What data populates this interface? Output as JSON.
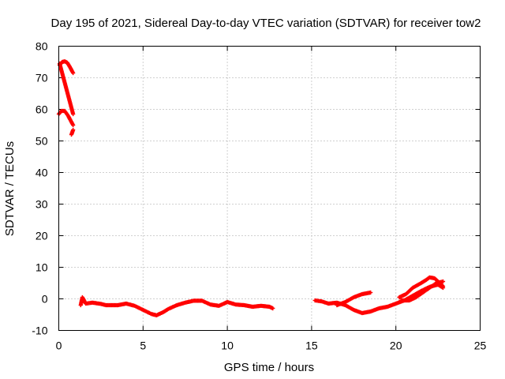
{
  "chart_data": {
    "type": "scatter",
    "title": "Day 195 of 2021, Sidereal Day-to-day VTEC variation (SDTVAR) for receiver tow2",
    "xlabel": "GPS time / hours",
    "ylabel": "SDTVAR / TECUs",
    "xlim": [
      0,
      25
    ],
    "ylim": [
      -10,
      80
    ],
    "xticks": [
      "0",
      "5",
      "10",
      "15",
      "20",
      "25"
    ],
    "yticks": [
      "-10",
      "0",
      "10",
      "20",
      "30",
      "40",
      "50",
      "60",
      "70",
      "80"
    ],
    "grid": true,
    "marker": "plus",
    "color": "#ff0000",
    "series": [
      {
        "name": "SDTVAR",
        "segments": [
          [
            [
              0.05,
              74.0
            ],
            [
              0.2,
              75.0
            ],
            [
              0.35,
              75.2
            ],
            [
              0.5,
              74.8
            ],
            [
              0.65,
              73.5
            ],
            [
              0.85,
              71.5
            ]
          ],
          [
            [
              0.05,
              74.5
            ],
            [
              0.15,
              72.5
            ],
            [
              0.3,
              69.5
            ],
            [
              0.45,
              66.5
            ],
            [
              0.6,
              63.5
            ],
            [
              0.75,
              60.5
            ],
            [
              0.85,
              58.5
            ]
          ],
          [
            [
              0.0,
              58.5
            ],
            [
              0.15,
              59.5
            ],
            [
              0.35,
              59.5
            ],
            [
              0.55,
              58.0
            ],
            [
              0.7,
              56.5
            ],
            [
              0.85,
              55.0
            ]
          ],
          [
            [
              0.75,
              52.0
            ],
            [
              0.85,
              53.5
            ]
          ],
          [
            [
              1.3,
              -2.0
            ],
            [
              1.4,
              0.5
            ],
            [
              1.6,
              -1.5
            ],
            [
              2.0,
              -1.2
            ],
            [
              2.5,
              -1.6
            ],
            [
              2.8,
              -2.0
            ],
            [
              3.0,
              -2.0
            ],
            [
              3.5,
              -2.0
            ],
            [
              4.0,
              -1.5
            ],
            [
              4.5,
              -2.2
            ],
            [
              5.0,
              -3.5
            ],
            [
              5.5,
              -4.8
            ],
            [
              5.8,
              -5.2
            ],
            [
              6.2,
              -4.2
            ],
            [
              6.5,
              -3.2
            ],
            [
              7.0,
              -2.0
            ],
            [
              7.5,
              -1.2
            ],
            [
              8.0,
              -0.6
            ],
            [
              8.5,
              -0.6
            ],
            [
              9.0,
              -1.8
            ],
            [
              9.5,
              -2.2
            ],
            [
              9.8,
              -1.5
            ],
            [
              10.0,
              -1.0
            ],
            [
              10.5,
              -1.8
            ],
            [
              11.0,
              -2.0
            ],
            [
              11.5,
              -2.5
            ],
            [
              12.0,
              -2.2
            ],
            [
              12.5,
              -2.5
            ],
            [
              12.7,
              -3.0
            ]
          ],
          [
            [
              15.2,
              -0.5
            ],
            [
              15.6,
              -0.8
            ],
            [
              16.0,
              -1.5
            ],
            [
              16.5,
              -1.2
            ],
            [
              17.0,
              -2.0
            ],
            [
              17.5,
              -3.5
            ],
            [
              18.0,
              -4.5
            ],
            [
              18.5,
              -4.0
            ],
            [
              19.0,
              -3.0
            ],
            [
              19.5,
              -2.5
            ],
            [
              20.0,
              -1.5
            ],
            [
              20.5,
              -0.5
            ],
            [
              21.0,
              1.0
            ],
            [
              21.5,
              2.5
            ],
            [
              22.0,
              3.8
            ],
            [
              22.5,
              4.5
            ],
            [
              22.8,
              3.5
            ]
          ],
          [
            [
              16.5,
              -2.0
            ],
            [
              17.0,
              -1.0
            ],
            [
              17.5,
              0.5
            ],
            [
              18.0,
              1.5
            ],
            [
              18.5,
              2.0
            ]
          ],
          [
            [
              20.2,
              0.5
            ],
            [
              20.6,
              1.5
            ],
            [
              21.0,
              3.5
            ],
            [
              21.5,
              5.0
            ],
            [
              21.8,
              6.0
            ],
            [
              22.0,
              6.8
            ],
            [
              22.3,
              6.5
            ],
            [
              22.6,
              5.0
            ],
            [
              22.8,
              4.0
            ]
          ],
          [
            [
              20.3,
              -0.5
            ],
            [
              20.8,
              -0.5
            ],
            [
              21.2,
              0.5
            ],
            [
              21.6,
              2.0
            ],
            [
              22.0,
              3.5
            ],
            [
              22.4,
              5.0
            ],
            [
              22.8,
              5.5
            ]
          ]
        ]
      }
    ]
  }
}
